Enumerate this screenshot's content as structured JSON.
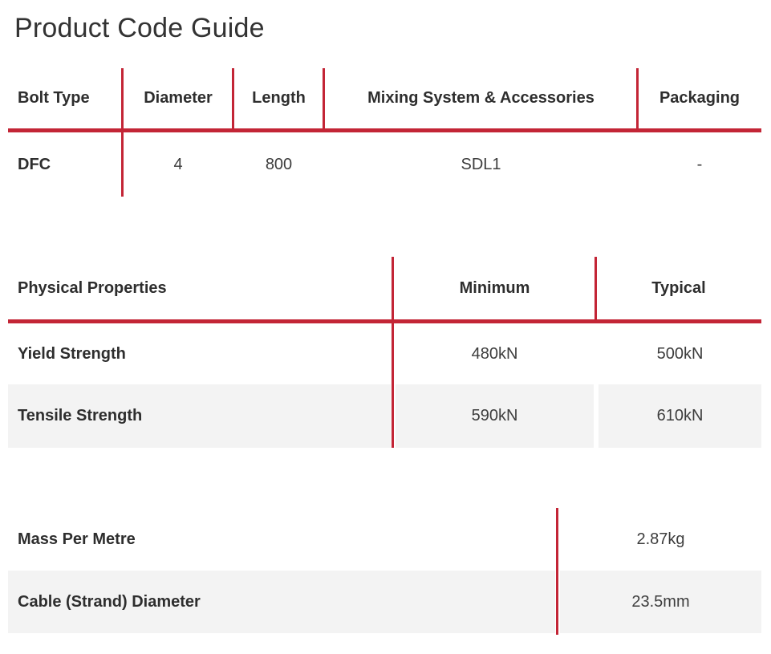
{
  "page": {
    "title": "Product Code Guide"
  },
  "colors": {
    "accent_red": "#c32536",
    "row_gray": "#f3f3f3",
    "heading_text": "#2e2e2e",
    "body_text": "#3d3d3d"
  },
  "product_code_table": {
    "columns": [
      "Bolt Type",
      "Diameter",
      "Length",
      "Mixing System & Accessories",
      "Packaging"
    ],
    "rows": [
      {
        "bolt_type": "DFC",
        "diameter": "4",
        "length": "800",
        "mixing_system": "SDL1",
        "packaging": "-"
      }
    ]
  },
  "physical_properties_table": {
    "columns": [
      "Physical Properties",
      "Minimum",
      "Typical"
    ],
    "rows": [
      {
        "property": "Yield Strength",
        "minimum": "480kN",
        "typical": "500kN"
      },
      {
        "property": "Tensile Strength",
        "minimum": "590kN",
        "typical": "610kN"
      }
    ]
  },
  "dimensions_table": {
    "rows": [
      {
        "property": "Mass Per Metre",
        "value": "2.87kg"
      },
      {
        "property": "Cable (Strand) Diameter",
        "value": "23.5mm"
      }
    ]
  }
}
